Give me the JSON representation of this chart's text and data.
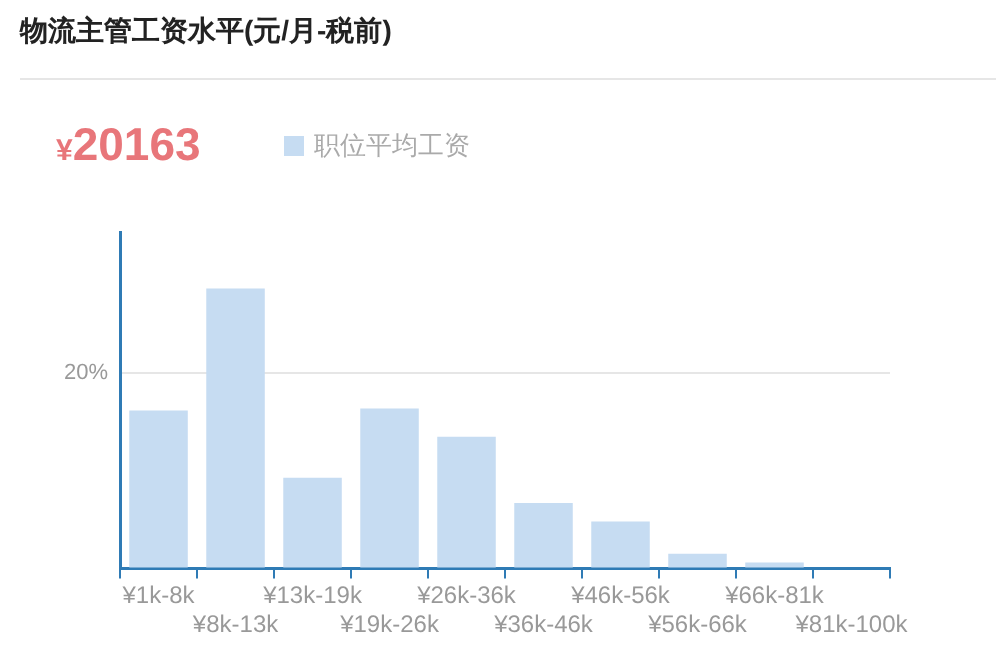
{
  "chart_data": {
    "type": "bar",
    "title": "物流主管工资水平(元/月-税前)",
    "subtitle": "¥20163",
    "categories": [
      "¥1k-8k",
      "¥8k-13k",
      "¥13k-19k",
      "¥19k-26k",
      "¥26k-36k",
      "¥36k-46k",
      "¥46k-56k",
      "¥56k-66k",
      "¥66k-81k",
      "¥81k-100k"
    ],
    "series": [
      {
        "name": "职位平均工资",
        "color": "#c6dcf2",
        "values": [
          16.2,
          28.7,
          9.3,
          16.4,
          13.5,
          6.7,
          4.8,
          1.5,
          0.6,
          0
        ]
      }
    ],
    "ylim": [
      0,
      34.5
    ],
    "yticks": [
      {
        "value": 0,
        "label": null
      },
      {
        "value": 20,
        "label": "20%"
      }
    ],
    "grid": "y",
    "legend": "top left"
  }
}
